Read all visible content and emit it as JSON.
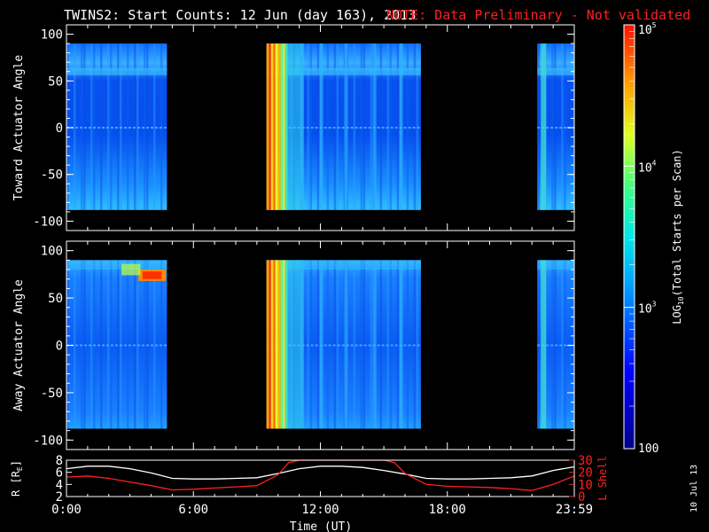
{
  "title": "TWINS2: Start Counts: 12 Jun (day 163), 2013",
  "note": "NOTE: Data Preliminary - Not validated",
  "date_stamp": "10 Jul 13",
  "colors": {
    "background": "#000000",
    "axes": "#ffffff",
    "note": "#ff2020",
    "r_line": "#ffffff",
    "lshell_line": "#ff2020"
  },
  "chart_data": [
    {
      "type": "heatmap",
      "name": "toward",
      "ylabel": "Toward Actuator Angle",
      "ylim": [
        -110,
        110
      ],
      "yticks": [
        -100,
        -50,
        0,
        50,
        100
      ],
      "xlim_hours": [
        0,
        24
      ],
      "data_y_range": [
        -88,
        90
      ],
      "data_intervals_hours": [
        [
          0,
          4.75
        ],
        [
          9.45,
          16.75
        ],
        [
          22.25,
          24
        ]
      ],
      "grid": false
    },
    {
      "type": "heatmap",
      "name": "away",
      "ylabel": "Away Actuator Angle",
      "ylim": [
        -110,
        110
      ],
      "yticks": [
        -100,
        -50,
        0,
        50,
        100
      ],
      "xlim_hours": [
        0,
        24
      ],
      "data_y_range": [
        -88,
        90
      ],
      "data_intervals_hours": [
        [
          0,
          4.75
        ],
        [
          9.45,
          16.75
        ],
        [
          22.25,
          24
        ]
      ],
      "grid": false
    },
    {
      "type": "line",
      "name": "ephemeris",
      "ylabel_left": "R [R",
      "ylabel_left_sub": "E",
      "ylabel_left_end": "]",
      "ylabel_right": "L Shell",
      "ylim_left": [
        2,
        8
      ],
      "yticks_left": [
        2,
        4,
        6,
        8
      ],
      "ylim_right": [
        0,
        30
      ],
      "yticks_right": [
        0,
        10,
        20,
        30
      ],
      "xlabel": "Time (UT)",
      "x_tick_labels": [
        "0:00",
        "6:00",
        "12:00",
        "18:00",
        "23:59"
      ],
      "x_tick_hours": [
        0,
        6,
        12,
        18,
        24
      ],
      "series": [
        {
          "axis": "left",
          "x": [
            0,
            1,
            2,
            3,
            4,
            5,
            6,
            7,
            8,
            9,
            10,
            11,
            12,
            13,
            14,
            15,
            16,
            17,
            18,
            19,
            20,
            21,
            22,
            23,
            24
          ],
          "values": [
            6.6,
            7.0,
            7.0,
            6.6,
            5.9,
            5.0,
            4.9,
            4.9,
            5.0,
            5.1,
            5.8,
            6.6,
            7.0,
            7.0,
            6.8,
            6.3,
            5.7,
            5.0,
            4.9,
            4.9,
            5.0,
            5.1,
            5.4,
            6.3,
            6.9
          ]
        },
        {
          "axis": "right",
          "x": [
            0,
            1,
            2,
            3,
            4,
            5,
            6,
            7,
            8,
            9,
            10,
            10.5,
            11,
            12,
            13,
            14,
            15,
            15.5,
            16,
            17,
            18,
            19,
            20,
            21,
            22,
            23,
            24
          ],
          "values": [
            16,
            17,
            15,
            12,
            9,
            5.5,
            6,
            7,
            8,
            9,
            18,
            28,
            30,
            30,
            30,
            30,
            30,
            28,
            19,
            10,
            8.5,
            8,
            7.5,
            6.5,
            5,
            10,
            17
          ]
        }
      ]
    }
  ],
  "colorbar": {
    "label_log": "LOG",
    "label_sub": "10",
    "label_rest": "(Total Starts per Scan)",
    "range_log": [
      2,
      5
    ],
    "ticks": [
      {
        "base": "10",
        "exp": "5",
        "value": 100000
      },
      {
        "base": "10",
        "exp": "4",
        "value": 10000
      },
      {
        "base": "10",
        "exp": "3",
        "value": 1000
      },
      {
        "base": "100",
        "exp": "",
        "value": 100
      }
    ]
  }
}
